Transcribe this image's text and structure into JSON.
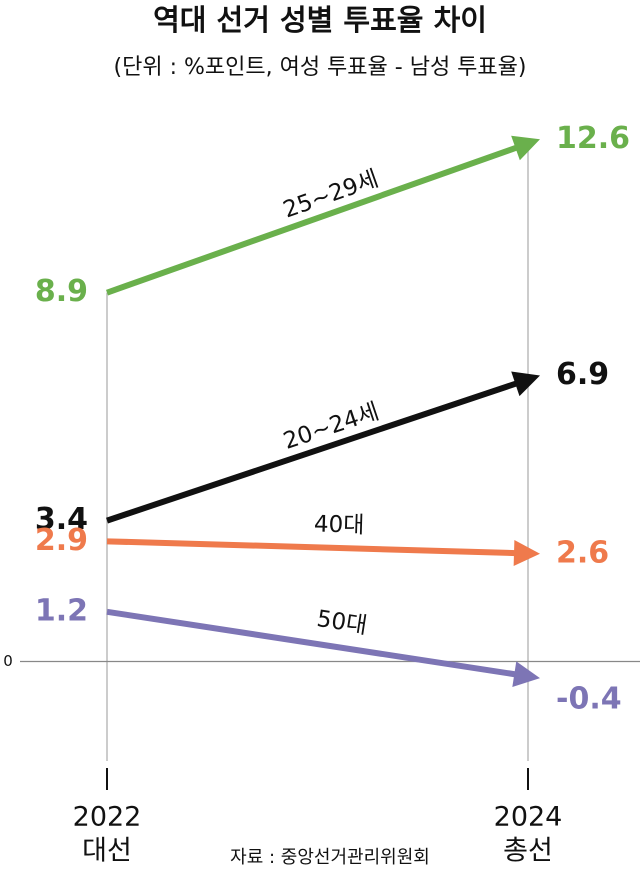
{
  "chart_data": {
    "type": "slope",
    "title": "역대 선거 성별 투표율 차이",
    "subtitle": "(단위 : %포인트, 여성 투표율 - 남성 투표율)",
    "categories": [
      "2022",
      "2024"
    ],
    "category_sublabels": [
      "대선",
      "총선"
    ],
    "source": "자료 : 중앙선거관리위원회",
    "ylim": [
      -2.4,
      13.5
    ],
    "yticks": [
      0
    ],
    "series": [
      {
        "name": "25~29세",
        "color": "#6ab04c",
        "values": [
          8.9,
          12.6
        ]
      },
      {
        "name": "20~24세",
        "color": "#111111",
        "values": [
          3.4,
          6.9
        ]
      },
      {
        "name": "40대",
        "color": "#ef7a4c",
        "values": [
          2.9,
          2.6
        ]
      },
      {
        "name": "50대",
        "color": "#7d75b5",
        "values": [
          1.2,
          -0.4
        ]
      }
    ]
  }
}
